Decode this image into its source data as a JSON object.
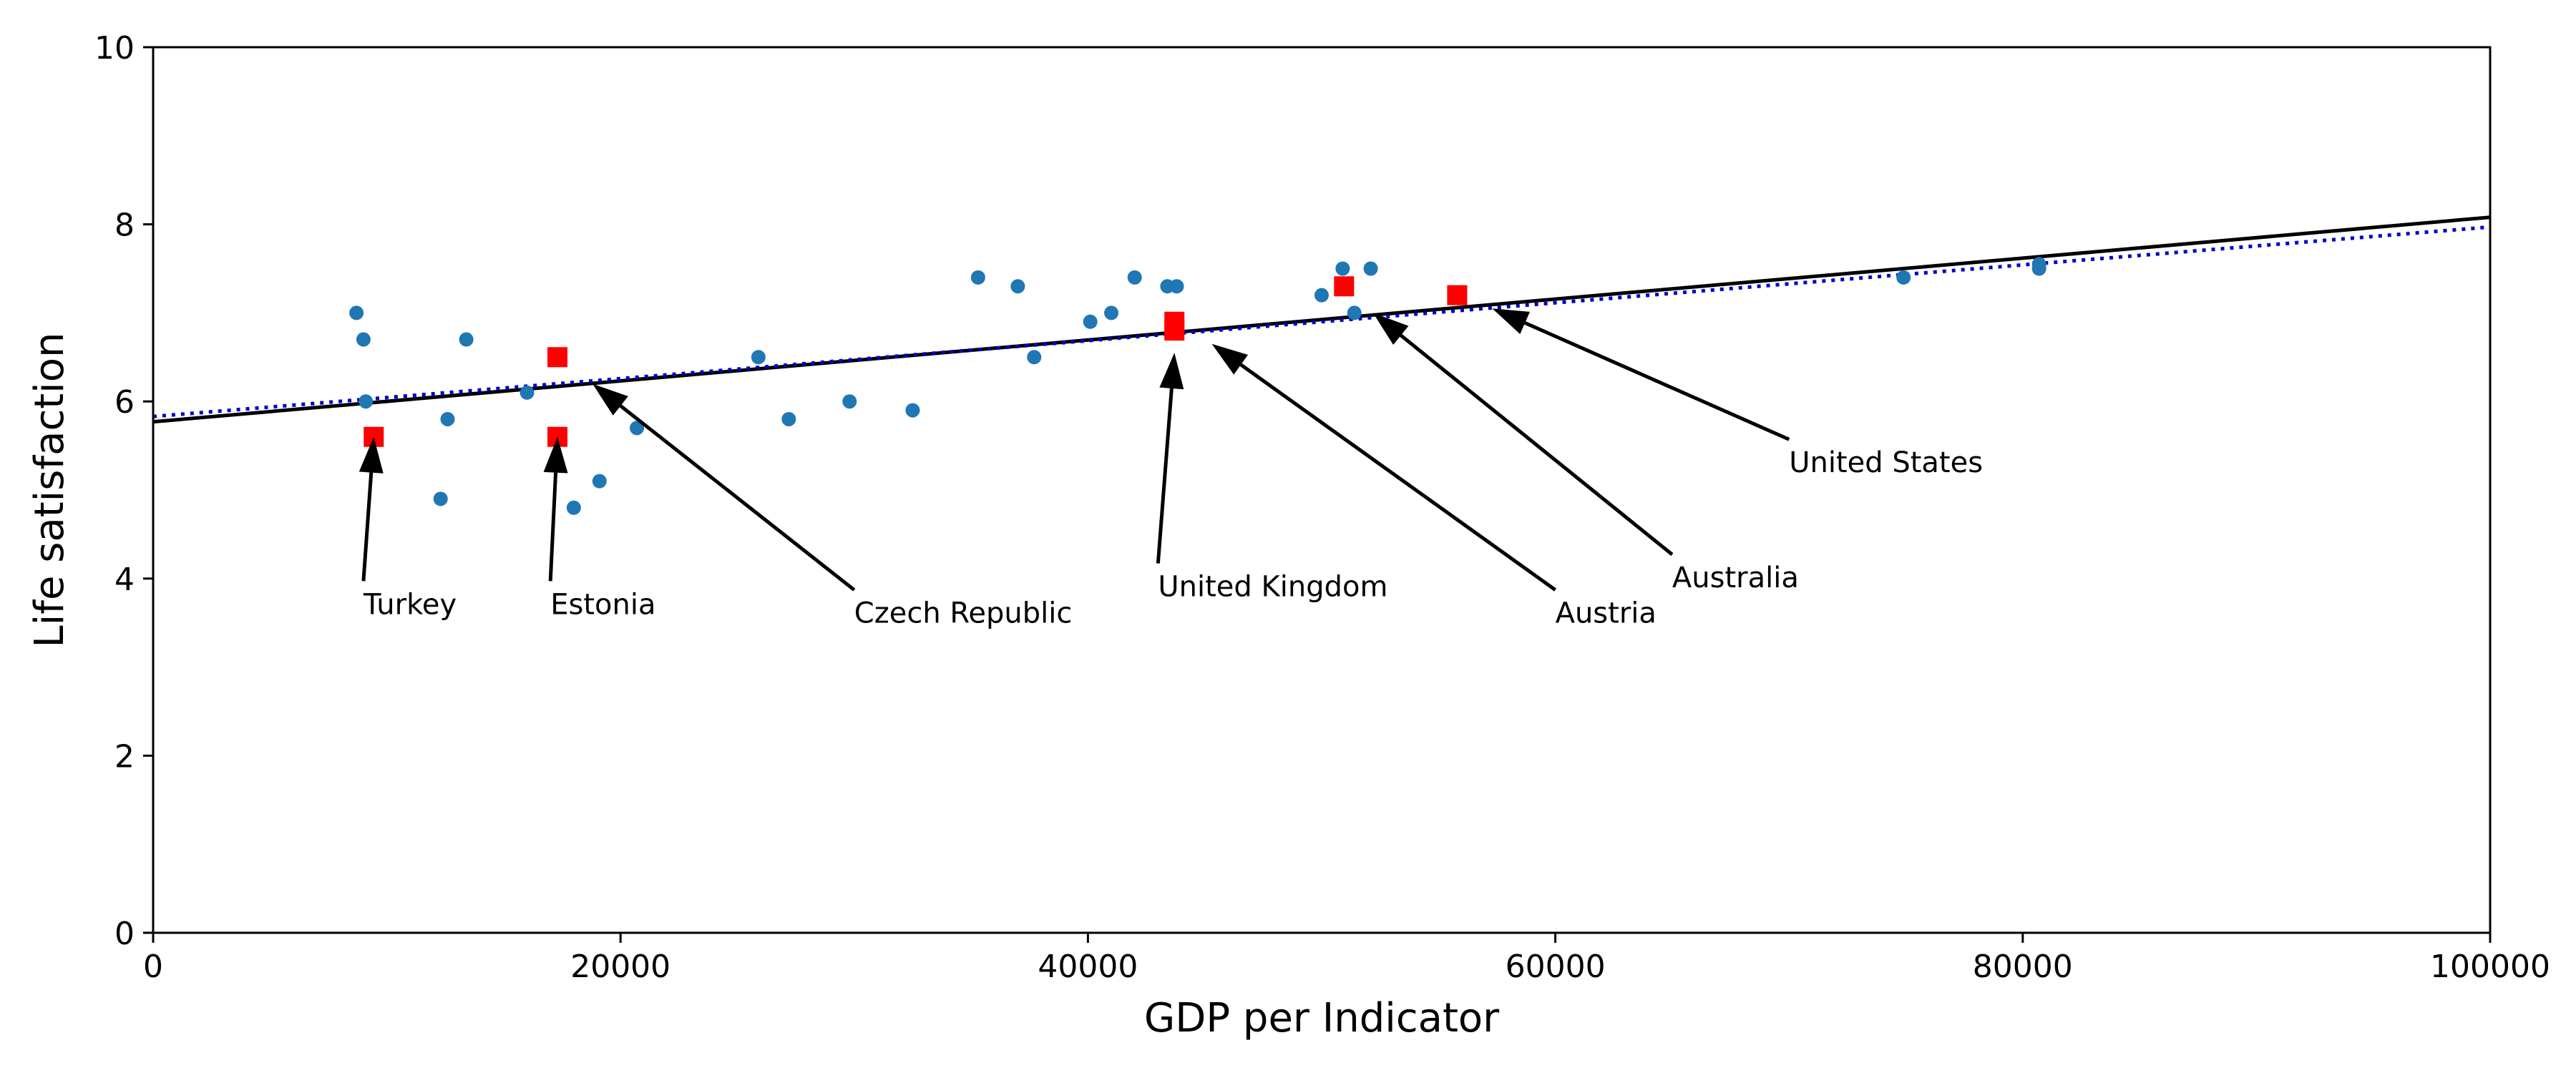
{
  "chart_data": {
    "type": "scatter",
    "title": "",
    "xlabel": "GDP per Indicator",
    "ylabel": "Life satisfaction",
    "xlim": [
      0,
      100000
    ],
    "ylim": [
      0,
      10
    ],
    "xticks": [
      0,
      20000,
      40000,
      60000,
      80000,
      100000
    ],
    "yticks": [
      0,
      2,
      4,
      6,
      8,
      10
    ],
    "grid": false,
    "legend": "none",
    "series": [
      {
        "kind": "points",
        "marker": "circle",
        "color": "#1f77b4",
        "points": [
          [
            8700,
            7.0
          ],
          [
            9000,
            6.7
          ],
          [
            9100,
            6.0
          ],
          [
            12300,
            4.9
          ],
          [
            12600,
            5.8
          ],
          [
            13400,
            6.7
          ],
          [
            16000,
            6.1
          ],
          [
            18000,
            4.8
          ],
          [
            19100,
            5.1
          ],
          [
            20700,
            5.7
          ],
          [
            25900,
            6.5
          ],
          [
            27200,
            5.8
          ],
          [
            29800,
            6.0
          ],
          [
            32500,
            5.9
          ],
          [
            35300,
            7.4
          ],
          [
            37000,
            7.3
          ],
          [
            37700,
            6.5
          ],
          [
            40100,
            6.9
          ],
          [
            41000,
            7.0
          ],
          [
            42000,
            7.4
          ],
          [
            43400,
            7.3
          ],
          [
            43800,
            7.3
          ],
          [
            43800,
            6.9
          ],
          [
            50000,
            7.2
          ],
          [
            50900,
            7.5
          ],
          [
            51400,
            7.0
          ],
          [
            52100,
            7.5
          ],
          [
            74900,
            7.4
          ],
          [
            80700,
            7.5
          ],
          [
            80700,
            7.55
          ]
        ]
      },
      {
        "kind": "points",
        "marker": "square",
        "color": "#ff0000",
        "points": [
          [
            9440,
            5.6
          ],
          [
            17300,
            5.6
          ],
          [
            17300,
            6.5
          ],
          [
            43700,
            6.8
          ],
          [
            43700,
            6.9
          ],
          [
            50960,
            7.3
          ],
          [
            55800,
            7.2
          ]
        ]
      },
      {
        "kind": "line",
        "style": "solid",
        "color": "#000000",
        "intercept": 5.77,
        "slope": 2.31e-05
      },
      {
        "kind": "line",
        "style": "dotted",
        "color": "#0000cc",
        "intercept": 5.83,
        "slope": 2.14e-05
      }
    ],
    "annotations": [
      {
        "text": "Turkey",
        "point": [
          9440,
          5.6
        ],
        "text_at": [
          9000,
          3.6
        ]
      },
      {
        "text": "Estonia",
        "point": [
          17300,
          5.6
        ],
        "text_at": [
          17000,
          3.6
        ]
      },
      {
        "text": "Czech Republic",
        "point": [
          18800,
          6.2
        ],
        "text_at": [
          30000,
          3.5
        ]
      },
      {
        "text": "United Kingdom",
        "point": [
          43700,
          6.55
        ],
        "text_at": [
          43000,
          3.8
        ]
      },
      {
        "text": "Austria",
        "point": [
          45300,
          6.65
        ],
        "text_at": [
          60000,
          3.5
        ]
      },
      {
        "text": "Australia",
        "point": [
          52200,
          7.0
        ],
        "text_at": [
          65000,
          3.9
        ]
      },
      {
        "text": "United States",
        "point": [
          57300,
          7.05
        ],
        "text_at": [
          70000,
          5.2
        ]
      }
    ]
  }
}
